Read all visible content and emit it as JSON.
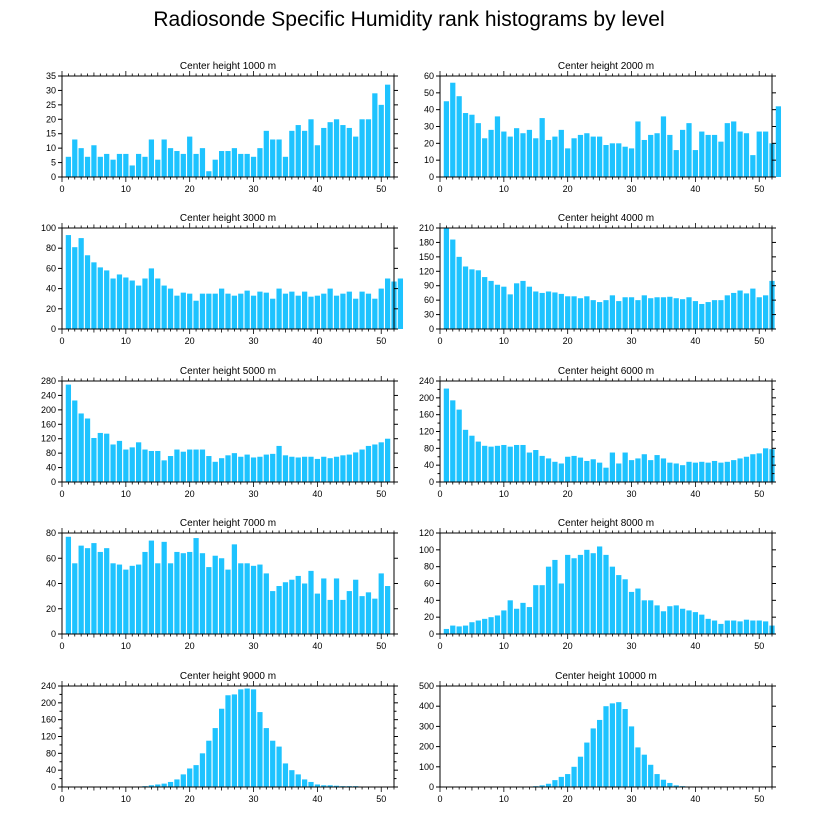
{
  "title": "Radiosonde Specific Humidity rank histograms by level",
  "chart_data": [
    {
      "type": "bar",
      "title": "Center height 1000 m",
      "x_range": [
        0,
        52
      ],
      "ylim": [
        0,
        35
      ],
      "yticks": [
        0,
        5,
        10,
        15,
        20,
        25,
        30,
        35
      ],
      "xticks": [
        0,
        10,
        20,
        30,
        40,
        50
      ],
      "values": [
        7,
        13,
        10,
        7,
        11,
        7,
        8,
        6,
        8,
        8,
        4,
        8,
        7,
        13,
        6,
        13,
        10,
        9,
        8,
        14,
        8,
        10,
        2,
        6,
        9,
        9,
        10,
        8,
        8,
        7,
        10,
        16,
        13,
        13,
        7,
        16,
        18,
        16,
        20,
        11,
        17,
        19,
        20,
        18,
        17,
        14,
        20,
        20,
        29,
        25,
        32
      ]
    },
    {
      "type": "bar",
      "title": "Center height 2000 m",
      "x_range": [
        0,
        52
      ],
      "ylim": [
        0,
        60
      ],
      "yticks": [
        0,
        10,
        20,
        30,
        40,
        50,
        60
      ],
      "xticks": [
        0,
        10,
        20,
        30,
        40,
        50
      ],
      "values": [
        45,
        56,
        48,
        38,
        37,
        32,
        23,
        28,
        36,
        27,
        24,
        29,
        26,
        28,
        23,
        35,
        22,
        24,
        28,
        17,
        23,
        25,
        26,
        24,
        24,
        19,
        20,
        20,
        18,
        17,
        33,
        22,
        25,
        26,
        36,
        25,
        16,
        28,
        32,
        16,
        27,
        25,
        25,
        21,
        32,
        33,
        27,
        26,
        13,
        27,
        27,
        20,
        42
      ]
    },
    {
      "type": "bar",
      "title": "Center height 3000 m",
      "x_range": [
        0,
        52
      ],
      "ylim": [
        0,
        100
      ],
      "yticks": [
        0,
        20,
        40,
        60,
        80,
        100
      ],
      "xticks": [
        0,
        10,
        20,
        30,
        40,
        50
      ],
      "values": [
        93,
        81,
        90,
        73,
        66,
        61,
        58,
        50,
        54,
        51,
        48,
        43,
        50,
        60,
        50,
        43,
        40,
        33,
        36,
        35,
        28,
        35,
        35,
        35,
        40,
        35,
        33,
        35,
        38,
        33,
        37,
        36,
        30,
        40,
        35,
        37,
        33,
        37,
        32,
        33,
        35,
        40,
        33,
        35,
        37,
        30,
        37,
        35,
        30,
        40,
        50,
        47,
        50
      ]
    },
    {
      "type": "bar",
      "title": "Center height 4000 m",
      "x_range": [
        0,
        52
      ],
      "ylim": [
        0,
        210
      ],
      "yticks": [
        0,
        30,
        60,
        90,
        120,
        150,
        180,
        210
      ],
      "xticks": [
        0,
        10,
        20,
        30,
        40,
        50
      ],
      "values": [
        210,
        186,
        150,
        130,
        124,
        122,
        108,
        100,
        92,
        88,
        72,
        95,
        100,
        88,
        78,
        75,
        78,
        76,
        73,
        68,
        68,
        64,
        68,
        60,
        56,
        60,
        70,
        58,
        66,
        66,
        60,
        70,
        64,
        66,
        66,
        67,
        64,
        62,
        66,
        58,
        52,
        56,
        60,
        60,
        70,
        75,
        80,
        74,
        84,
        66,
        70,
        100
      ]
    },
    {
      "type": "bar",
      "title": "Center height 5000 m",
      "x_range": [
        0,
        52
      ],
      "ylim": [
        0,
        280
      ],
      "yticks": [
        0,
        40,
        80,
        120,
        160,
        200,
        240,
        280
      ],
      "xticks": [
        0,
        10,
        20,
        30,
        40,
        50
      ],
      "values": [
        270,
        226,
        190,
        176,
        122,
        136,
        134,
        104,
        114,
        90,
        96,
        110,
        90,
        86,
        86,
        60,
        72,
        90,
        84,
        90,
        90,
        90,
        72,
        56,
        66,
        74,
        80,
        70,
        76,
        68,
        70,
        76,
        78,
        100,
        74,
        70,
        68,
        70,
        70,
        64,
        70,
        66,
        70,
        74,
        76,
        82,
        90,
        100,
        104,
        110,
        120
      ]
    },
    {
      "type": "bar",
      "title": "Center height 6000 m",
      "x_range": [
        0,
        52
      ],
      "ylim": [
        0,
        240
      ],
      "yticks": [
        0,
        20,
        40,
        60,
        80,
        100,
        120,
        140,
        160,
        180,
        200,
        220,
        240
      ],
      "ylabel_step": 40,
      "xticks": [
        0,
        10,
        20,
        30,
        40,
        50
      ],
      "values": [
        222,
        194,
        172,
        124,
        110,
        96,
        86,
        84,
        86,
        88,
        84,
        88,
        88,
        70,
        76,
        62,
        56,
        48,
        44,
        60,
        62,
        58,
        50,
        54,
        46,
        34,
        70,
        44,
        70,
        52,
        56,
        66,
        52,
        64,
        56,
        46,
        44,
        40,
        48,
        46,
        48,
        46,
        50,
        46,
        48,
        52,
        56,
        60,
        66,
        68,
        80,
        78
      ]
    },
    {
      "type": "bar",
      "title": "Center height 7000 m",
      "x_range": [
        0,
        52
      ],
      "ylim": [
        0,
        80
      ],
      "yticks": [
        0,
        20,
        40,
        60,
        80
      ],
      "xticks": [
        0,
        10,
        20,
        30,
        40,
        50
      ],
      "values": [
        77,
        56,
        70,
        68,
        72,
        65,
        68,
        56,
        55,
        51,
        54,
        55,
        65,
        74,
        56,
        73,
        56,
        65,
        64,
        65,
        76,
        64,
        53,
        62,
        60,
        51,
        71,
        56,
        56,
        54,
        55,
        48,
        34,
        38,
        41,
        43,
        46,
        40,
        50,
        32,
        44,
        27,
        44,
        27,
        34,
        43,
        30,
        33,
        28,
        48,
        38
      ]
    },
    {
      "type": "bar",
      "title": "Center height 8000 m",
      "x_range": [
        0,
        52
      ],
      "ylim": [
        0,
        120
      ],
      "yticks": [
        0,
        20,
        40,
        60,
        80,
        100,
        120
      ],
      "xticks": [
        0,
        10,
        20,
        30,
        40,
        50
      ],
      "values": [
        6,
        10,
        9,
        10,
        14,
        16,
        18,
        20,
        22,
        28,
        40,
        30,
        37,
        32,
        58,
        58,
        80,
        88,
        60,
        94,
        90,
        94,
        100,
        96,
        104,
        94,
        80,
        70,
        65,
        50,
        54,
        40,
        40,
        34,
        27,
        33,
        34,
        30,
        28,
        26,
        23,
        18,
        16,
        12,
        16,
        16,
        15,
        17,
        16,
        16,
        15,
        10
      ]
    },
    {
      "type": "bar",
      "title": "Center height 9000 m",
      "x_range": [
        0,
        52
      ],
      "ylim": [
        0,
        240
      ],
      "yticks": [
        0,
        20,
        40,
        60,
        80,
        100,
        120,
        140,
        160,
        180,
        200,
        220,
        240
      ],
      "ylabel_step": 40,
      "xticks": [
        0,
        10,
        20,
        30,
        40,
        50
      ],
      "values": [
        1,
        1,
        1,
        1,
        1,
        1,
        1,
        1,
        1,
        1,
        1,
        1,
        2,
        4,
        6,
        8,
        12,
        18,
        30,
        44,
        52,
        80,
        110,
        140,
        186,
        218,
        220,
        232,
        234,
        232,
        178,
        140,
        110,
        96,
        56,
        40,
        30,
        18,
        12,
        6,
        4,
        4,
        3,
        2,
        2,
        2,
        1,
        1,
        1,
        1,
        1,
        1
      ]
    },
    {
      "type": "bar",
      "title": "Center height 10000 m",
      "x_range": [
        0,
        52
      ],
      "ylim": [
        0,
        500
      ],
      "yticks": [
        0,
        100,
        200,
        300,
        400,
        500
      ],
      "xticks": [
        0,
        10,
        20,
        30,
        40,
        50
      ],
      "values": [
        1,
        1,
        1,
        1,
        1,
        1,
        1,
        1,
        1,
        1,
        1,
        1,
        1,
        2,
        4,
        8,
        16,
        34,
        50,
        64,
        100,
        150,
        220,
        290,
        332,
        400,
        414,
        420,
        386,
        300,
        196,
        160,
        110,
        64,
        36,
        20,
        8,
        4,
        2,
        1,
        1,
        1,
        1,
        1,
        1,
        1,
        1,
        1,
        1,
        1,
        1,
        1
      ]
    }
  ]
}
